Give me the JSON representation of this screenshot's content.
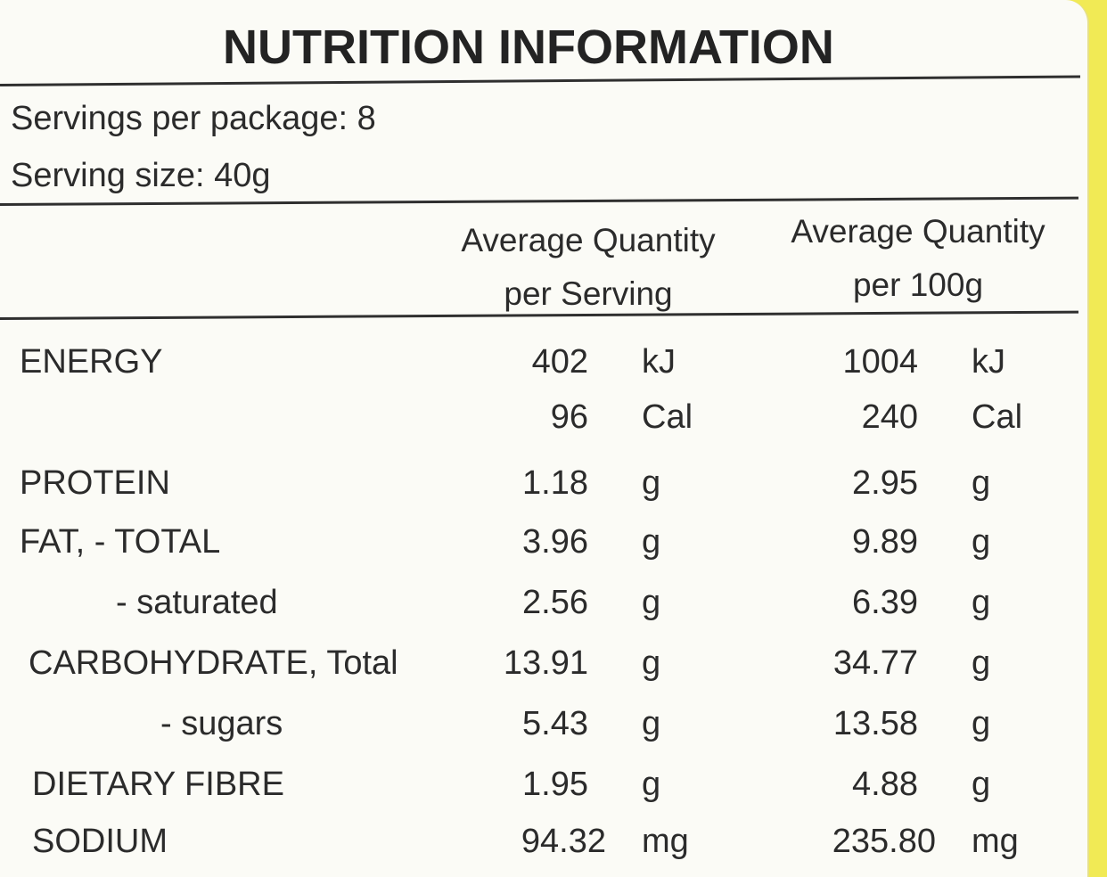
{
  "title": "NUTRITION INFORMATION",
  "servings_per_package": "Servings per package: 8",
  "serving_size": "Serving size: 40g",
  "columns": {
    "per_serving": [
      "Average Quantity",
      "per Serving"
    ],
    "per_100g": [
      "Average Quantity",
      "per 100g"
    ]
  },
  "rows": [
    {
      "label": "ENERGY",
      "serving": "402",
      "serving_unit": "kJ",
      "per100": "1004",
      "per100_unit": "kJ"
    },
    {
      "label": "",
      "serving": "96",
      "serving_unit": "Cal",
      "per100": "240",
      "per100_unit": "Cal"
    },
    {
      "label": "PROTEIN",
      "serving": "1.18",
      "serving_unit": "g",
      "per100": "2.95",
      "per100_unit": "g"
    },
    {
      "label": "FAT, - TOTAL",
      "serving": "3.96",
      "serving_unit": "g",
      "per100": "9.89",
      "per100_unit": "g"
    },
    {
      "label": "- saturated",
      "serving": "2.56",
      "serving_unit": "g",
      "per100": "6.39",
      "per100_unit": "g"
    },
    {
      "label": "CARBOHYDRATE, Total",
      "serving": "13.91",
      "serving_unit": "g",
      "per100": "34.77",
      "per100_unit": "g"
    },
    {
      "label": "- sugars",
      "serving": "5.43",
      "serving_unit": "g",
      "per100": "13.58",
      "per100_unit": "g"
    },
    {
      "label": "DIETARY FIBRE",
      "serving": "1.95",
      "serving_unit": "g",
      "per100": "4.88",
      "per100_unit": "g"
    },
    {
      "label": "SODIUM",
      "serving": "94.32",
      "serving_unit": "mg",
      "per100": "235.80",
      "per100_unit": "mg"
    }
  ]
}
